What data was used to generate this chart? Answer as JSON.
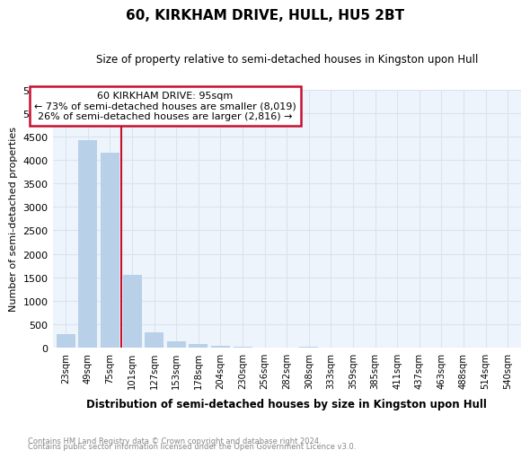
{
  "title": "60, KIRKHAM DRIVE, HULL, HU5 2BT",
  "subtitle": "Size of property relative to semi-detached houses in Kingston upon Hull",
  "xlabel": "Distribution of semi-detached houses by size in Kingston upon Hull",
  "ylabel": "Number of semi-detached properties",
  "footnote1": "Contains HM Land Registry data © Crown copyright and database right 2024.",
  "footnote2": "Contains public sector information licensed under the Open Government Licence v3.0.",
  "annotation_title": "60 KIRKHAM DRIVE: 95sqm",
  "annotation_line1": "← 73% of semi-detached houses are smaller (8,019)",
  "annotation_line2": "26% of semi-detached houses are larger (2,816) →",
  "categories": [
    "23sqm",
    "49sqm",
    "75sqm",
    "101sqm",
    "127sqm",
    "153sqm",
    "178sqm",
    "204sqm",
    "230sqm",
    "256sqm",
    "282sqm",
    "308sqm",
    "333sqm",
    "359sqm",
    "385sqm",
    "411sqm",
    "437sqm",
    "463sqm",
    "488sqm",
    "514sqm",
    "540sqm"
  ],
  "values": [
    290,
    4430,
    4150,
    1560,
    320,
    140,
    75,
    45,
    30,
    10,
    5,
    20,
    3,
    2,
    2,
    1,
    1,
    1,
    1,
    1,
    1
  ],
  "bar_color": "#b8d0e8",
  "red_line_index": 3,
  "ylim": [
    0,
    5500
  ],
  "yticks": [
    0,
    500,
    1000,
    1500,
    2000,
    2500,
    3000,
    3500,
    4000,
    4500,
    5000,
    5500
  ],
  "annotation_box_color": "#c8102e",
  "grid_color": "#d8e4f0",
  "bg_color": "#eef4fb"
}
